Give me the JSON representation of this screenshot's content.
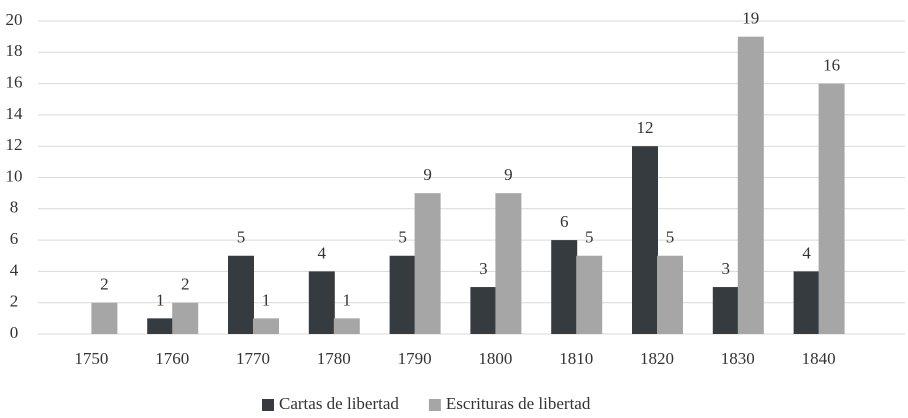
{
  "chart_data": {
    "type": "bar",
    "categories": [
      "1750",
      "1760",
      "1770",
      "1780",
      "1790",
      "1800",
      "1810",
      "1820",
      "1830",
      "1840"
    ],
    "series": [
      {
        "name": "Cartas de libertad",
        "color": "#353b3e",
        "values": [
          null,
          1,
          5,
          4,
          5,
          3,
          6,
          12,
          3,
          4
        ]
      },
      {
        "name": "Escrituras de libertad",
        "color": "#a6a6a6",
        "values": [
          2,
          2,
          1,
          1,
          9,
          9,
          5,
          5,
          19,
          16
        ]
      }
    ],
    "ylim": [
      0,
      20
    ],
    "yticks": [
      0,
      2,
      4,
      6,
      8,
      10,
      12,
      14,
      16,
      18,
      20
    ],
    "grid": true,
    "legend": "bottom"
  }
}
